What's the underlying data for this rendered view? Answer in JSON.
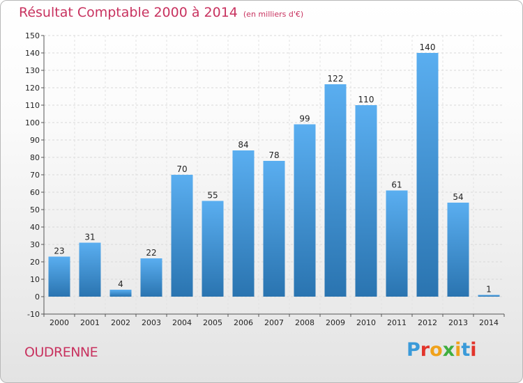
{
  "title": "Résultat Comptable 2000 à 2014",
  "subtitle": "(en milliers d'€)",
  "commune": "OUDRENNE",
  "logo": {
    "letters": [
      "P",
      "r",
      "o",
      "x",
      "i",
      "t",
      "i"
    ],
    "colors": [
      "#3a9ad9",
      "#e2342b",
      "#f0a21b",
      "#3fae3f",
      "#f0a21b",
      "#3a9ad9",
      "#e2342b"
    ]
  },
  "chart_data": {
    "type": "bar",
    "categories": [
      "2000",
      "2001",
      "2002",
      "2003",
      "2004",
      "2005",
      "2006",
      "2007",
      "2008",
      "2009",
      "2010",
      "2011",
      "2012",
      "2013",
      "2014"
    ],
    "values": [
      23,
      31,
      4,
      22,
      70,
      55,
      84,
      78,
      99,
      122,
      110,
      61,
      140,
      54,
      1
    ],
    "ylim": [
      -10,
      150
    ],
    "yticks": [
      -10,
      0,
      10,
      20,
      30,
      40,
      50,
      60,
      70,
      80,
      90,
      100,
      110,
      120,
      130,
      140,
      150
    ],
    "grid": true,
    "bar_color_top": "#5aaef0",
    "bar_color_bottom": "#2a74b0"
  }
}
